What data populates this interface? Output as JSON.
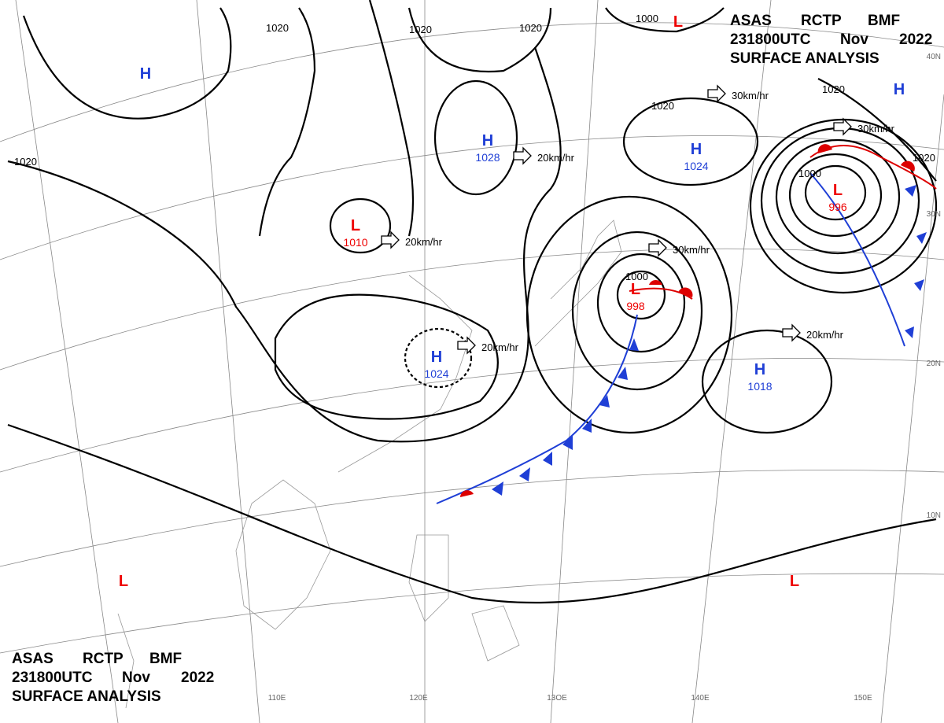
{
  "header": {
    "line1": [
      "ASAS",
      "RCTP",
      "BMF"
    ],
    "line2": [
      "231800UTC",
      "Nov",
      "2022"
    ],
    "line3": "SURFACE ANALYSIS"
  },
  "pressure_centers": [
    {
      "symbol": "H",
      "value": null
    },
    {
      "symbol": "H",
      "value": 1028
    },
    {
      "symbol": "H",
      "value": 1024
    },
    {
      "symbol": "H",
      "value": 1024
    },
    {
      "symbol": "H",
      "value": 1018
    },
    {
      "symbol": "H",
      "value": null
    },
    {
      "symbol": "L",
      "value": 1010
    },
    {
      "symbol": "L",
      "value": 998
    },
    {
      "symbol": "L",
      "value": 996
    },
    {
      "symbol": "L",
      "value": null
    },
    {
      "symbol": "L",
      "value": null
    },
    {
      "symbol": "L",
      "value": null
    }
  ],
  "isobar_labels": [
    "1020",
    "1020",
    "1020",
    "1020",
    "1020",
    "1000",
    "1020",
    "1000",
    "1000",
    "1020"
  ],
  "motion_labels": [
    "20km/hr",
    "20km/hr",
    "20km/hr",
    "30km/hr",
    "30km/hr",
    "30km/hr",
    "20km/hr"
  ],
  "longitude_labels": [
    "110E",
    "120E",
    "13OE",
    "140E",
    "150E"
  ],
  "latitude_labels": [
    "40N",
    "30N",
    "20N",
    "10N"
  ]
}
